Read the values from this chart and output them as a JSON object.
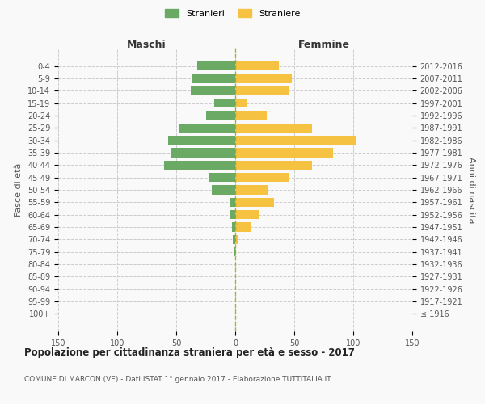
{
  "age_groups": [
    "100+",
    "95-99",
    "90-94",
    "85-89",
    "80-84",
    "75-79",
    "70-74",
    "65-69",
    "60-64",
    "55-59",
    "50-54",
    "45-49",
    "40-44",
    "35-39",
    "30-34",
    "25-29",
    "20-24",
    "15-19",
    "10-14",
    "5-9",
    "0-4"
  ],
  "birth_years": [
    "≤ 1916",
    "1917-1921",
    "1922-1926",
    "1927-1931",
    "1932-1936",
    "1937-1941",
    "1942-1946",
    "1947-1951",
    "1952-1956",
    "1957-1961",
    "1962-1966",
    "1967-1971",
    "1972-1976",
    "1977-1981",
    "1982-1986",
    "1987-1991",
    "1992-1996",
    "1997-2001",
    "2002-2006",
    "2007-2011",
    "2012-2016"
  ],
  "maschi": [
    0,
    0,
    0,
    0,
    0,
    1,
    2,
    3,
    5,
    5,
    20,
    22,
    60,
    55,
    57,
    47,
    25,
    18,
    38,
    36,
    32
  ],
  "femmine": [
    0,
    0,
    0,
    0,
    0,
    1,
    3,
    13,
    20,
    33,
    28,
    45,
    65,
    83,
    103,
    65,
    27,
    10,
    45,
    48,
    37
  ],
  "color_maschi": "#6aaa64",
  "color_femmine": "#f5c242",
  "title": "Popolazione per cittadinanza straniera per età e sesso - 2017",
  "subtitle": "COMUNE DI MARCON (VE) - Dati ISTAT 1° gennaio 2017 - Elaborazione TUTTITALIA.IT",
  "legend_maschi": "Stranieri",
  "legend_femmine": "Straniere",
  "xlabel_left": "Maschi",
  "xlabel_right": "Femmine",
  "ylabel_left": "Fasce di età",
  "ylabel_right": "Anni di nascita",
  "xlim": 150,
  "background_color": "#f9f9f9",
  "grid_color": "#cccccc"
}
